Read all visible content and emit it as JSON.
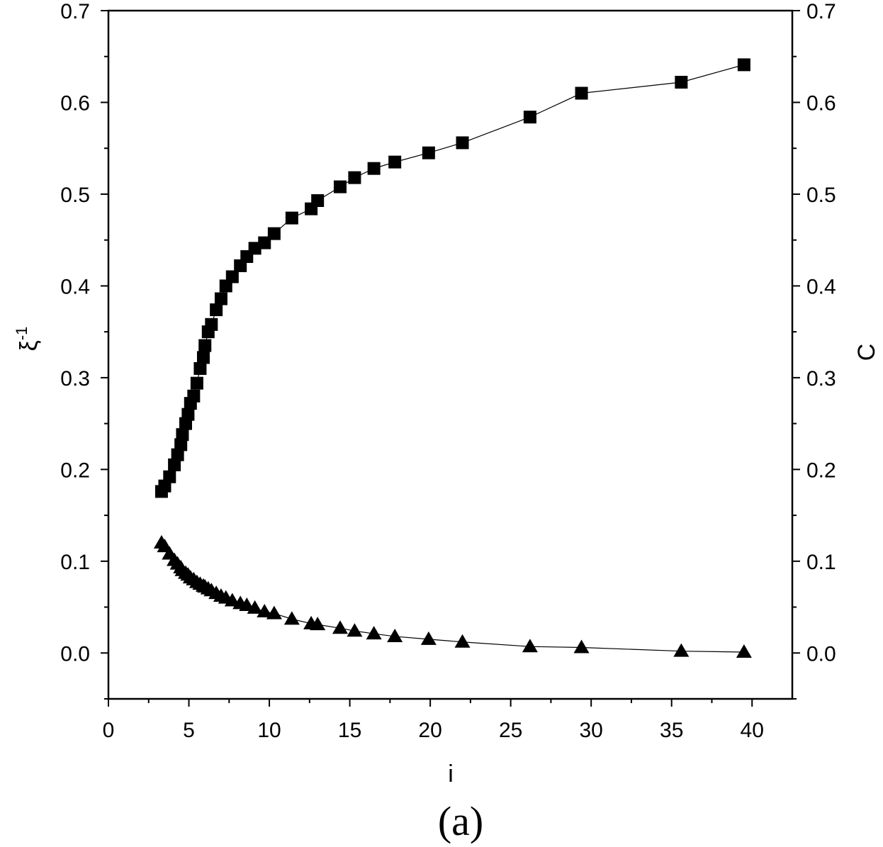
{
  "chart_data": {
    "type": "scatter",
    "title": "",
    "caption": "(a)",
    "xlabel": "i",
    "ylabel_left": "ξ",
    "ylabel_left_sup": "-1",
    "ylabel_right": "C",
    "xlim": [
      0,
      42.5
    ],
    "ylim": [
      -0.05,
      0.7
    ],
    "xticks": [
      0,
      5,
      10,
      15,
      20,
      25,
      30,
      35,
      40
    ],
    "yticks": [
      0.0,
      0.1,
      0.2,
      0.3,
      0.4,
      0.5,
      0.6,
      0.7
    ],
    "xtick_labels": [
      "0",
      "5",
      "10",
      "15",
      "20",
      "25",
      "30",
      "35",
      "40"
    ],
    "ytick_labels": [
      "0.0",
      "0.1",
      "0.2",
      "0.3",
      "0.4",
      "0.5",
      "0.6",
      "0.7"
    ],
    "grid": false,
    "legend": "none",
    "series": [
      {
        "marker": "square",
        "color": "#000000",
        "x": [
          3.3,
          3.5,
          3.8,
          4.1,
          4.3,
          4.5,
          4.6,
          4.8,
          4.95,
          5.1,
          5.3,
          5.5,
          5.7,
          5.9,
          6.0,
          6.2,
          6.4,
          6.7,
          7.0,
          7.3,
          7.7,
          8.2,
          8.6,
          9.1,
          9.7,
          10.3,
          11.4,
          12.6,
          13.0,
          14.4,
          15.3,
          16.5,
          17.8,
          19.9,
          22.0,
          26.2,
          29.4,
          35.6,
          39.5
        ],
        "y": [
          0.176,
          0.182,
          0.192,
          0.205,
          0.216,
          0.227,
          0.238,
          0.25,
          0.26,
          0.272,
          0.28,
          0.294,
          0.31,
          0.322,
          0.335,
          0.35,
          0.358,
          0.374,
          0.386,
          0.4,
          0.41,
          0.422,
          0.432,
          0.441,
          0.447,
          0.457,
          0.474,
          0.484,
          0.493,
          0.508,
          0.518,
          0.528,
          0.535,
          0.545,
          0.556,
          0.584,
          0.61,
          0.622,
          0.641
        ]
      },
      {
        "marker": "triangle",
        "color": "#000000",
        "x": [
          3.3,
          3.5,
          3.8,
          4.1,
          4.3,
          4.5,
          4.6,
          4.8,
          4.95,
          5.1,
          5.3,
          5.5,
          5.7,
          5.9,
          6.0,
          6.2,
          6.4,
          6.7,
          7.0,
          7.3,
          7.7,
          8.2,
          8.6,
          9.1,
          9.7,
          10.3,
          11.4,
          12.6,
          13.0,
          14.4,
          15.3,
          16.5,
          17.8,
          19.9,
          22.0,
          26.2,
          29.4,
          35.6,
          39.5
        ],
        "y": [
          0.12,
          0.116,
          0.108,
          0.101,
          0.097,
          0.093,
          0.09,
          0.087,
          0.085,
          0.082,
          0.08,
          0.077,
          0.075,
          0.073,
          0.072,
          0.07,
          0.068,
          0.065,
          0.062,
          0.06,
          0.057,
          0.054,
          0.052,
          0.049,
          0.045,
          0.043,
          0.037,
          0.032,
          0.031,
          0.027,
          0.024,
          0.021,
          0.018,
          0.015,
          0.012,
          0.007,
          0.006,
          0.002,
          0.001
        ]
      }
    ]
  }
}
